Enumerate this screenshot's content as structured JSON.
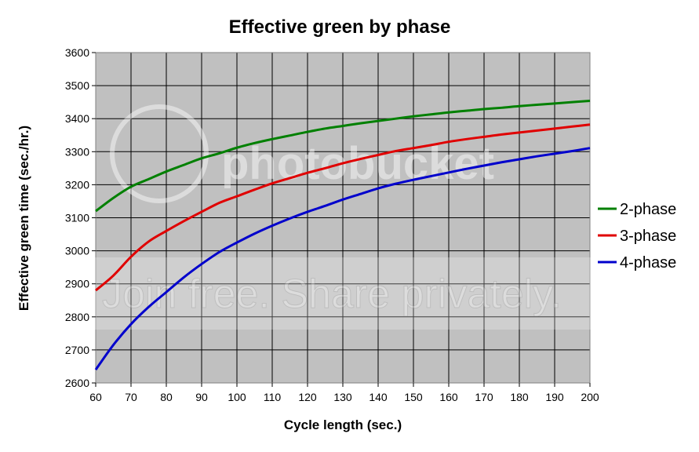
{
  "watermark": {
    "brand": "photobucket",
    "tagline": "Join free. Share privately."
  },
  "chart_data": {
    "type": "line",
    "title": "Effective green by phase",
    "xlabel": "Cycle length (sec.)",
    "ylabel": "Effective green time (sec./hr.)",
    "xlim": [
      60,
      200
    ],
    "ylim": [
      2600,
      3600
    ],
    "x_ticks": [
      60,
      70,
      80,
      90,
      100,
      110,
      120,
      130,
      140,
      150,
      160,
      170,
      180,
      190,
      200
    ],
    "y_ticks": [
      2600,
      2700,
      2800,
      2900,
      3000,
      3100,
      3200,
      3300,
      3400,
      3500,
      3600
    ],
    "grid": true,
    "legend_position": "right",
    "plot_background": "#c0c0c0",
    "x": [
      60,
      65,
      70,
      75,
      80,
      85,
      90,
      95,
      100,
      105,
      110,
      115,
      120,
      125,
      130,
      135,
      140,
      145,
      150,
      155,
      160,
      165,
      170,
      175,
      180,
      185,
      190,
      195,
      200
    ],
    "series": [
      {
        "name": "2-phase",
        "color": "#008000",
        "values": [
          3120,
          3160,
          3194,
          3217,
          3240,
          3260,
          3280,
          3295,
          3312,
          3326,
          3338,
          3349,
          3360,
          3370,
          3378,
          3386,
          3393,
          3400,
          3407,
          3413,
          3419,
          3424,
          3429,
          3433,
          3438,
          3442,
          3446,
          3450,
          3454
        ]
      },
      {
        "name": "3-phase",
        "color": "#e00000",
        "values": [
          2880,
          2925,
          2982,
          3028,
          3060,
          3090,
          3118,
          3145,
          3165,
          3185,
          3204,
          3220,
          3236,
          3250,
          3265,
          3278,
          3290,
          3302,
          3311,
          3320,
          3330,
          3338,
          3345,
          3352,
          3358,
          3364,
          3370,
          3376,
          3382
        ]
      },
      {
        "name": "4-phase",
        "color": "#0000cc",
        "values": [
          2640,
          2715,
          2778,
          2830,
          2875,
          2920,
          2960,
          2996,
          3025,
          3052,
          3076,
          3098,
          3118,
          3136,
          3155,
          3172,
          3189,
          3203,
          3215,
          3226,
          3237,
          3248,
          3258,
          3268,
          3277,
          3286,
          3294,
          3302,
          3311
        ]
      }
    ]
  }
}
